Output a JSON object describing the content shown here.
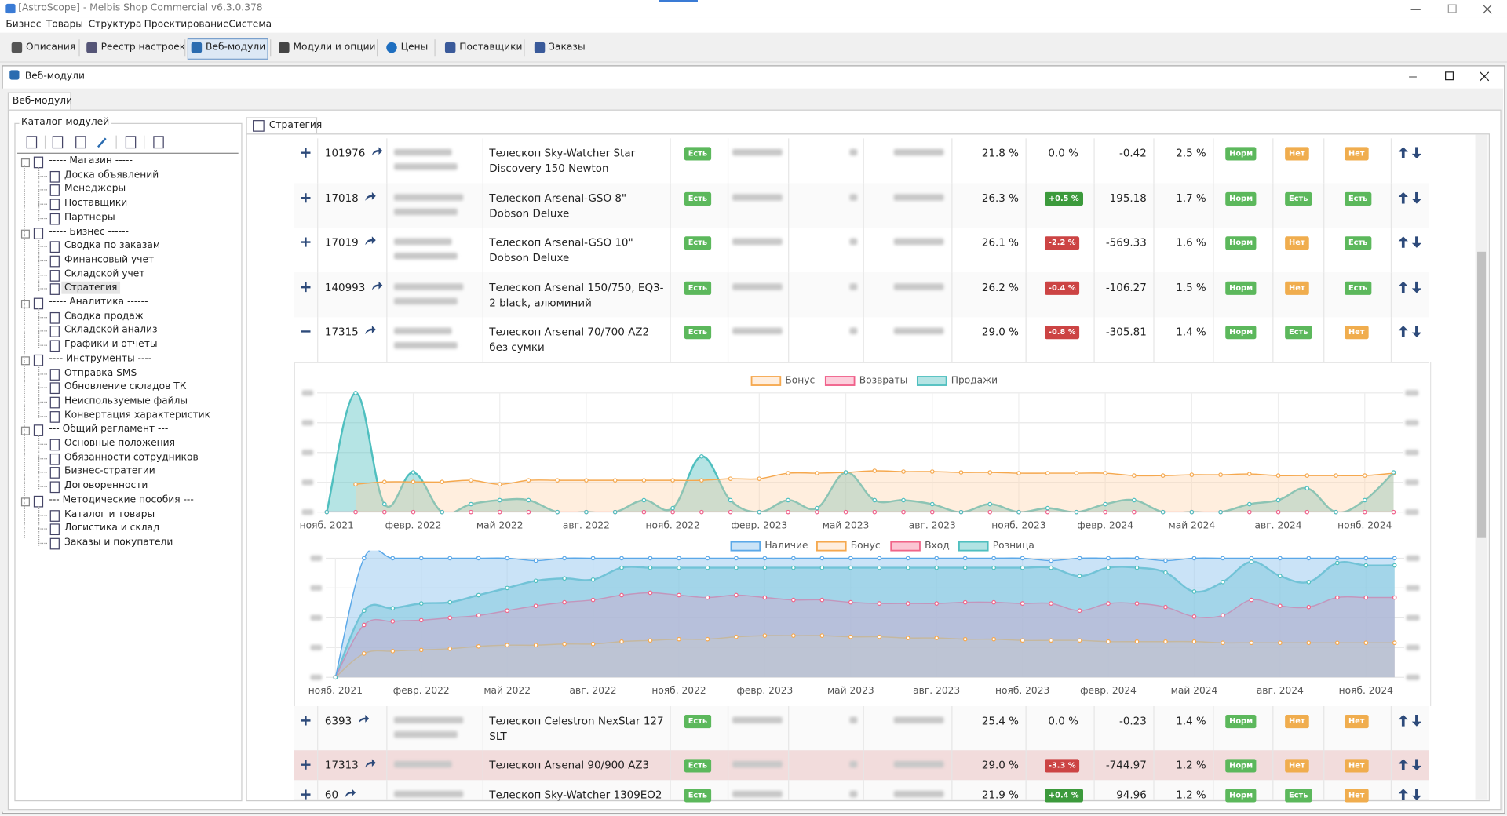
{
  "window": {
    "title": "[AstroScope] - Melbis Shop Commercial v6.3.0.378",
    "menu": [
      "Бизнес",
      "Товары",
      "Структура",
      "Проектирование",
      "Система"
    ],
    "toolbar": [
      "Описания",
      "Реестр настроек",
      "Веб-модули",
      "Модули и опции",
      "Цены",
      "Поставщики",
      "Заказы"
    ]
  },
  "module_window": {
    "title": "Веб-модули",
    "tab": "Веб-модули"
  },
  "catalog": {
    "label": "Каталог модулей",
    "groups": [
      {
        "label": "----- Магазин -----",
        "items": [
          "Доска объявлений",
          "Менеджеры",
          "Поставщики",
          "Партнеры"
        ]
      },
      {
        "label": "----- Бизнес ------",
        "items": [
          "Сводка по заказам",
          "Финансовый учет",
          "Складской учет",
          "Стратегия"
        ]
      },
      {
        "label": "----- Аналитика ------",
        "items": [
          "Сводка продаж",
          "Складской анализ",
          "Графики и отчеты"
        ]
      },
      {
        "label": "---- Инструменты ----",
        "items": [
          "Отправка SMS",
          "Обновление складов ТК",
          "Неиспользуемые файлы",
          "Конвертация характеристик"
        ]
      },
      {
        "label": "--- Общий регламент ---",
        "items": [
          "Основные положения",
          "Обязанности сотрудников",
          "Бизнес-стратегии",
          "Договоренности"
        ]
      },
      {
        "label": "--- Методические пособия ---",
        "items": [
          "Каталог и товары",
          "Логистика и склад",
          "Заказы и покупатели"
        ]
      }
    ]
  },
  "strategy": {
    "tab": "Стратегия",
    "rows": [
      {
        "id": "101976",
        "name": "Телескоп Sky-Watcher Star Discovery 150 Newton",
        "stock": "Есть",
        "margin": "21.8 %",
        "diff": "0.0 %",
        "delta": "-0.42",
        "share": "2.5 %",
        "status": "Норм",
        "flag1": "Нет",
        "flag2": "Нет"
      },
      {
        "id": "17018",
        "name": "Телескоп Arsenal-GSO 8\" Dobson Deluxe",
        "stock": "Есть",
        "margin": "26.3 %",
        "diff": "+0.5 %",
        "delta": "195.18",
        "share": "1.7 %",
        "status": "Норм",
        "flag1": "Есть",
        "flag2": "Есть"
      },
      {
        "id": "17019",
        "name": "Телескоп Arsenal-GSO 10\" Dobson Deluxe",
        "stock": "Есть",
        "margin": "26.1 %",
        "diff": "-2.2 %",
        "delta": "-569.33",
        "share": "1.6 %",
        "status": "Норм",
        "flag1": "Нет",
        "flag2": "Есть"
      },
      {
        "id": "140993",
        "name": "Телескоп Arsenal 150/750, EQ3-2 black, алюминий",
        "stock": "Есть",
        "margin": "26.2 %",
        "diff": "-0.4 %",
        "delta": "-106.27",
        "share": "1.5 %",
        "status": "Норм",
        "flag1": "Нет",
        "flag2": "Есть"
      },
      {
        "id": "17315",
        "name": "Телескоп Arsenal 70/700 AZ2 без сумки",
        "stock": "Есть",
        "margin": "29.0 %",
        "diff": "-0.8 %",
        "delta": "-305.81",
        "share": "1.4 %",
        "status": "Норм",
        "flag1": "Есть",
        "flag2": "Нет"
      },
      {
        "id": "6393",
        "name": "Телескоп Celestron NexStar 127 SLT",
        "stock": "Есть",
        "margin": "25.4 %",
        "diff": "0.0 %",
        "delta": "-0.23",
        "share": "1.4 %",
        "status": "Норм",
        "flag1": "Нет",
        "flag2": "Нет"
      },
      {
        "id": "17313",
        "name": "Телескоп Arsenal 90/900 AZ3",
        "stock": "Есть",
        "margin": "29.0 %",
        "diff": "-3.3 %",
        "delta": "-744.97",
        "share": "1.2 %",
        "status": "Норм",
        "flag1": "Нет",
        "flag2": "Нет"
      },
      {
        "id": "60",
        "name": "Телескоп Sky-Watcher 1309EO2",
        "stock": "Есть",
        "margin": "21.9 %",
        "diff": "+0.4 %",
        "delta": "94.96",
        "share": "1.2 %",
        "status": "Норм",
        "flag1": "Есть",
        "flag2": "Нет"
      }
    ]
  },
  "chart_data": [
    {
      "type": "area",
      "categories": [
        "нояб. 2021",
        null,
        null,
        "февр. 2022",
        null,
        null,
        "май 2022",
        null,
        null,
        "авг. 2022",
        null,
        null,
        "нояб. 2022",
        null,
        null,
        "февр. 2023",
        null,
        null,
        "май 2023",
        null,
        null,
        "авг. 2023",
        null,
        null,
        "нояб. 2023",
        null,
        null,
        "февр. 2024",
        null,
        null,
        "май 2024",
        null,
        null,
        "авг. 2024",
        null,
        null,
        "нояб. 2024",
        null
      ],
      "ylim": [
        0,
        15
      ],
      "series": [
        {
          "name": "Бонус",
          "color": "#f5a84e",
          "fill": "rgba(255,205,160,0.35)",
          "values": [
            null,
            3.5,
            3.8,
            3.8,
            3.8,
            4,
            3.5,
            4,
            4,
            4,
            4,
            4,
            4,
            4,
            4.2,
            4.2,
            4.9,
            4.9,
            5,
            5.2,
            5.1,
            5.1,
            5,
            5,
            4.9,
            4.9,
            4.9,
            4.9,
            4.6,
            4.6,
            4.7,
            4.7,
            4.8,
            4.6,
            4.6,
            4.6,
            4.6,
            4.9
          ]
        },
        {
          "name": "Возвраты",
          "color": "#f0608a",
          "fill": "rgba(250,160,185,0.5)",
          "values": [
            0,
            0,
            0,
            0,
            0,
            0,
            0,
            0,
            0,
            0,
            0,
            0,
            0,
            0,
            0,
            0,
            0,
            0,
            0,
            0,
            0,
            0,
            0,
            0,
            0,
            0,
            0,
            0,
            0,
            0,
            0,
            0,
            0,
            0,
            0,
            0,
            0,
            0
          ]
        },
        {
          "name": "Продажи",
          "color": "#4fbfbf",
          "fill": "rgba(90,195,195,0.45)",
          "values": [
            0,
            15,
            1,
            5,
            0,
            1,
            1.5,
            1.5,
            0,
            0,
            0,
            1.5,
            0.5,
            7,
            1.5,
            0,
            1.5,
            0.5,
            5,
            1.5,
            1.5,
            1,
            0,
            1,
            0,
            0.5,
            0,
            1,
            1.5,
            0,
            0,
            0,
            1,
            1.5,
            3,
            0,
            1.5,
            5
          ]
        }
      ]
    },
    {
      "type": "area",
      "categories": [
        "нояб. 2021",
        null,
        null,
        "февр. 2022",
        null,
        null,
        "май 2022",
        null,
        null,
        "авг. 2022",
        null,
        null,
        "нояб. 2022",
        null,
        null,
        "февр. 2023",
        null,
        null,
        "май 2023",
        null,
        null,
        "авг. 2023",
        null,
        null,
        "нояб. 2023",
        null,
        null,
        "февр. 2024",
        null,
        null,
        "май 2024",
        null,
        null,
        "авг. 2024",
        null,
        null,
        "нояб. 2024",
        null
      ],
      "ylim": [
        0,
        100
      ],
      "series": [
        {
          "name": "Наличие",
          "color": "#5ba8e8",
          "fill": "rgba(150,200,240,0.5)",
          "values": [
            0,
            100,
            100,
            100,
            100,
            100,
            100,
            98,
            100,
            100,
            100,
            100,
            100,
            100,
            100,
            100,
            100,
            100,
            100,
            100,
            100,
            100,
            100,
            100,
            100,
            98,
            100,
            100,
            100,
            98,
            100,
            100,
            100,
            100,
            100,
            100,
            100,
            100
          ]
        },
        {
          "name": "Бонус",
          "color": "#f5a84e",
          "fill": "rgba(255,205,160,0.35)",
          "values": [
            0,
            20,
            22,
            23,
            24,
            26,
            27,
            27,
            28,
            28,
            30,
            31,
            32,
            32,
            34,
            35,
            35,
            35,
            34,
            34,
            33,
            33,
            32,
            32,
            31,
            31,
            31,
            30,
            30,
            30,
            30,
            29,
            29,
            29,
            29,
            29,
            29,
            29
          ]
        },
        {
          "name": "Вход",
          "color": "#f06488",
          "fill": "rgba(248,150,175,0.55)",
          "values": [
            0,
            44,
            47,
            48,
            50,
            52,
            56,
            60,
            63,
            65,
            69,
            71,
            69,
            67,
            69,
            67,
            65,
            65,
            63,
            62,
            62,
            62,
            63,
            63,
            62,
            62,
            56,
            62,
            62,
            59,
            51,
            52,
            65,
            60,
            59,
            67,
            67,
            67
          ]
        },
        {
          "name": "Розница",
          "color": "#4fbfbf",
          "fill": "rgba(100,200,200,0.5)",
          "values": [
            0,
            56,
            58,
            62,
            63,
            69,
            75,
            81,
            83,
            82,
            92,
            92,
            92,
            92,
            92,
            92,
            92,
            92,
            92,
            92,
            92,
            92,
            92,
            92,
            92,
            92,
            85,
            92,
            92,
            88,
            72,
            80,
            97,
            85,
            80,
            96,
            94,
            94
          ]
        }
      ]
    }
  ]
}
